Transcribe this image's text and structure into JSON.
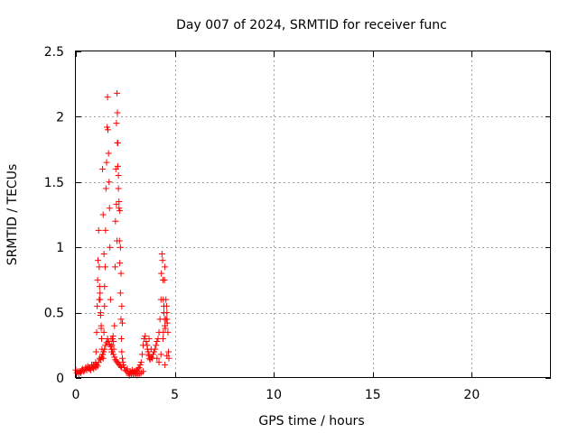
{
  "chart_data": {
    "type": "scatter",
    "title": "Day 007 of 2024, SRMTID for receiver func",
    "xlabel": "GPS time / hours",
    "ylabel": "SRMTID / TECUs",
    "xlim": [
      0,
      24
    ],
    "ylim": [
      0,
      2.5
    ],
    "xticks": [
      0,
      5,
      10,
      15,
      20
    ],
    "xtick_labels": [
      "0",
      "5",
      "10",
      "15",
      "20"
    ],
    "yticks": [
      0,
      0.5,
      1,
      1.5,
      2,
      2.5
    ],
    "ytick_labels": [
      "0",
      "0.5",
      "1",
      "1.5",
      "2",
      "2.5"
    ],
    "grid": true,
    "marker": "+",
    "series": [
      {
        "name": "SRMTID",
        "color": "#ff0000",
        "x": [
          0.0,
          0.05,
          0.1,
          0.15,
          0.2,
          0.25,
          0.3,
          0.35,
          0.4,
          0.45,
          0.5,
          0.55,
          0.6,
          0.65,
          0.7,
          0.75,
          0.8,
          0.85,
          0.9,
          0.95,
          1.0,
          1.02,
          1.05,
          1.08,
          1.1,
          1.12,
          1.15,
          1.18,
          1.2,
          1.22,
          1.25,
          1.28,
          1.3,
          1.32,
          1.35,
          1.38,
          1.4,
          1.42,
          1.45,
          1.48,
          1.5,
          1.52,
          1.55,
          1.58,
          1.6,
          1.62,
          1.65,
          1.68,
          1.7,
          1.72,
          1.75,
          1.78,
          1.8,
          1.82,
          1.85,
          1.88,
          1.9,
          1.92,
          1.95,
          1.98,
          2.0,
          2.02,
          2.05,
          2.08,
          2.1,
          2.12,
          2.15,
          2.18,
          2.2,
          2.22,
          2.25,
          2.28,
          2.3,
          2.32,
          2.35,
          2.38,
          2.4,
          2.45,
          2.5,
          2.55,
          2.6,
          2.65,
          2.7,
          2.75,
          2.8,
          2.85,
          2.9,
          2.95,
          3.0,
          3.05,
          3.1,
          3.15,
          3.2,
          3.25,
          3.3,
          3.35,
          3.4,
          3.45,
          3.5,
          3.55,
          3.6,
          3.62,
          3.65,
          3.68,
          3.7,
          3.72,
          3.75,
          3.8,
          3.85,
          3.9,
          3.95,
          4.0,
          4.05,
          4.1,
          4.15,
          4.2,
          4.25,
          4.3,
          4.32,
          4.35,
          4.38,
          4.4,
          4.42,
          4.45,
          4.48,
          4.5,
          4.52,
          4.55,
          4.58,
          4.6,
          4.62,
          4.65,
          4.68,
          4.7,
          1.0,
          1.05,
          1.1,
          1.15,
          1.2,
          1.25,
          1.3,
          1.35,
          1.4,
          1.45,
          1.5,
          1.55,
          1.6,
          1.65,
          1.7,
          1.75,
          1.8,
          1.85,
          1.9,
          1.95,
          2.0,
          2.05,
          2.1,
          2.15,
          2.2,
          2.25,
          2.3,
          1.35,
          1.38,
          1.42,
          1.45,
          2.1,
          2.12,
          2.15,
          2.18,
          2.22,
          2.25,
          2.28,
          1.18,
          1.22,
          1.25,
          1.28,
          2.05,
          2.08,
          2.32,
          2.35,
          4.4,
          4.42,
          4.45,
          4.48,
          4.5,
          4.55,
          4.6,
          0.6,
          0.7,
          0.8,
          0.9,
          1.0,
          3.1,
          3.2,
          3.3,
          3.4,
          2.7,
          2.8,
          2.9,
          3.0,
          3.7,
          3.8,
          4.1,
          4.2,
          4.3,
          4.5,
          4.6
        ],
        "y": [
          0.06,
          0.04,
          0.05,
          0.03,
          0.05,
          0.04,
          0.06,
          0.07,
          0.05,
          0.06,
          0.08,
          0.06,
          0.09,
          0.07,
          0.08,
          0.06,
          0.1,
          0.08,
          0.07,
          0.09,
          0.11,
          0.2,
          0.35,
          0.55,
          0.75,
          0.9,
          1.13,
          0.85,
          0.7,
          0.6,
          0.5,
          0.4,
          0.3,
          0.22,
          0.18,
          0.15,
          0.2,
          0.35,
          0.55,
          0.85,
          1.13,
          1.45,
          1.65,
          1.92,
          2.15,
          1.9,
          1.72,
          1.5,
          1.3,
          1.0,
          0.6,
          0.3,
          0.2,
          0.25,
          0.3,
          0.32,
          0.28,
          0.22,
          0.4,
          0.85,
          1.2,
          1.6,
          1.95,
          2.18,
          2.03,
          1.8,
          1.55,
          1.3,
          1.05,
          0.88,
          0.65,
          0.45,
          0.3,
          0.2,
          0.15,
          0.12,
          0.1,
          0.08,
          0.06,
          0.05,
          0.07,
          0.04,
          0.03,
          0.05,
          0.04,
          0.06,
          0.03,
          0.05,
          0.04,
          0.06,
          0.05,
          0.07,
          0.08,
          0.1,
          0.12,
          0.18,
          0.25,
          0.3,
          0.32,
          0.28,
          0.25,
          0.22,
          0.2,
          0.18,
          0.17,
          0.15,
          0.14,
          0.16,
          0.15,
          0.18,
          0.2,
          0.22,
          0.25,
          0.28,
          0.3,
          0.35,
          0.45,
          0.6,
          0.8,
          0.95,
          0.9,
          0.75,
          0.6,
          0.5,
          0.45,
          0.4,
          0.38,
          0.45,
          0.55,
          0.5,
          0.42,
          0.35,
          0.2,
          0.15,
          0.08,
          0.1,
          0.09,
          0.12,
          0.15,
          0.14,
          0.16,
          0.18,
          0.2,
          0.22,
          0.25,
          0.27,
          0.3,
          0.28,
          0.26,
          0.24,
          0.22,
          0.2,
          0.18,
          0.16,
          0.14,
          0.13,
          0.12,
          0.11,
          0.1,
          0.09,
          0.08,
          1.6,
          1.25,
          0.95,
          0.7,
          1.8,
          1.62,
          1.45,
          1.35,
          1.28,
          1.0,
          0.8,
          0.6,
          0.65,
          0.48,
          0.38,
          1.33,
          1.05,
          0.55,
          0.42,
          0.3,
          0.35,
          0.55,
          0.75,
          0.85,
          0.6,
          0.45,
          0.08,
          0.07,
          0.09,
          0.1,
          0.12,
          0.02,
          0.03,
          0.04,
          0.05,
          0.02,
          0.03,
          0.04,
          0.03,
          0.3,
          0.22,
          0.15,
          0.12,
          0.18,
          0.1,
          0.17
        ]
      }
    ]
  }
}
